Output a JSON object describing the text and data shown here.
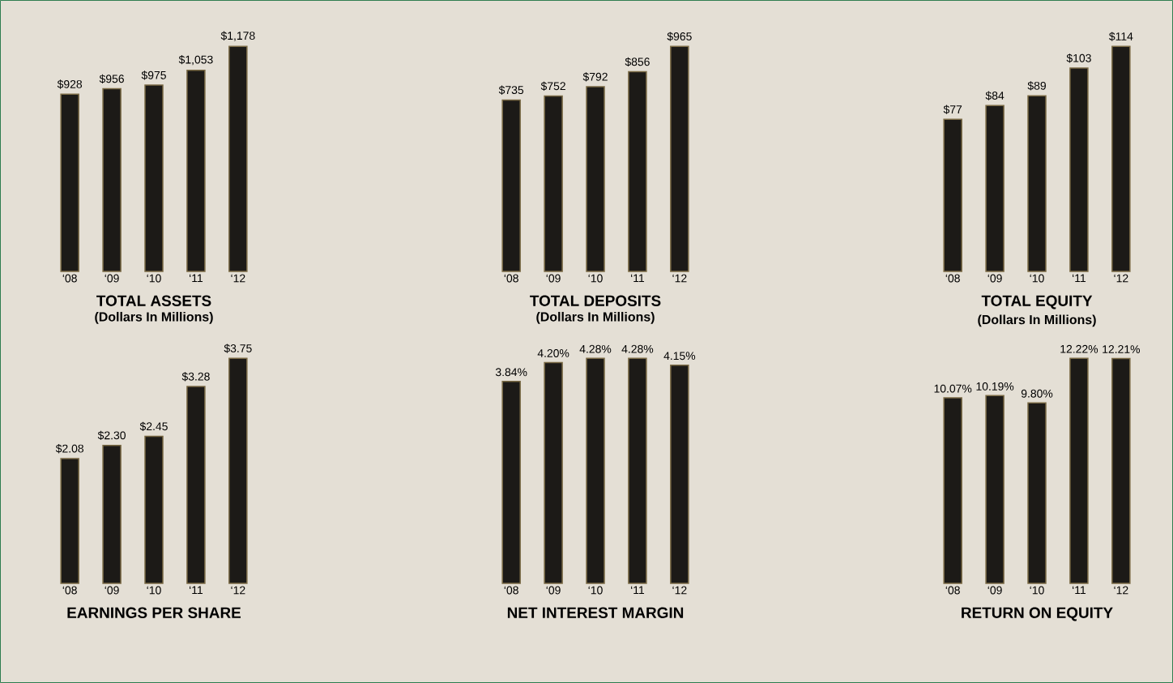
{
  "chart_data": [
    {
      "type": "bar",
      "title": "TOTAL ASSETS",
      "subtitle": "(Dollars In Millions)",
      "categories": [
        "‘08",
        "‘09",
        "‘10",
        "‘11",
        "‘12"
      ],
      "values": [
        928,
        956,
        975,
        1053,
        1178
      ],
      "value_labels": [
        "$928",
        "$956",
        "$975",
        "$1,053",
        "$1,178"
      ],
      "color": "#1c1a17"
    },
    {
      "type": "bar",
      "title": "TOTAL DEPOSITS",
      "subtitle": "(Dollars In Millions)",
      "categories": [
        "‘08",
        "‘09",
        "‘10",
        "‘11",
        "‘12"
      ],
      "values": [
        735,
        752,
        792,
        856,
        965
      ],
      "value_labels": [
        "$735",
        "$752",
        "$792",
        "$856",
        "$965"
      ],
      "color": "#1c1a17"
    },
    {
      "type": "bar",
      "title": "TOTAL EQUITY",
      "subtitle": "(Dollars In Millions)",
      "categories": [
        "‘08",
        "‘09",
        "‘10",
        "‘11",
        "‘12"
      ],
      "values": [
        77,
        84,
        89,
        103,
        114
      ],
      "value_labels": [
        "$77",
        "$84",
        "$89",
        "$103",
        "$114"
      ],
      "color": "#1c1a17"
    },
    {
      "type": "bar",
      "title": "EARNINGS PER SHARE",
      "categories": [
        "‘08",
        "‘09",
        "‘10",
        "‘11",
        "‘12"
      ],
      "values": [
        2.08,
        2.3,
        2.45,
        3.28,
        3.75
      ],
      "value_labels": [
        "$2.08",
        "$2.30",
        "$2.45",
        "$3.28",
        "$3.75"
      ],
      "color": "#1c1a17"
    },
    {
      "type": "bar",
      "title": "NET INTEREST MARGIN",
      "categories": [
        "‘08",
        "‘09",
        "‘10",
        "‘11",
        "‘12"
      ],
      "values": [
        3.84,
        4.2,
        4.28,
        4.28,
        4.15
      ],
      "value_labels": [
        "3.84%",
        "4.20%",
        "4.28%",
        "4.28%",
        "4.15%"
      ],
      "color": "#1c1a17"
    },
    {
      "type": "bar",
      "title": "RETURN ON EQUITY",
      "categories": [
        "‘08",
        "‘09",
        "‘10",
        "‘11",
        "‘12"
      ],
      "values": [
        10.07,
        10.19,
        9.8,
        12.22,
        12.21
      ],
      "value_labels": [
        "10.07%",
        "10.19%",
        "9.80%",
        "12.22%",
        "12.21%"
      ],
      "color": "#1c1a17"
    }
  ]
}
